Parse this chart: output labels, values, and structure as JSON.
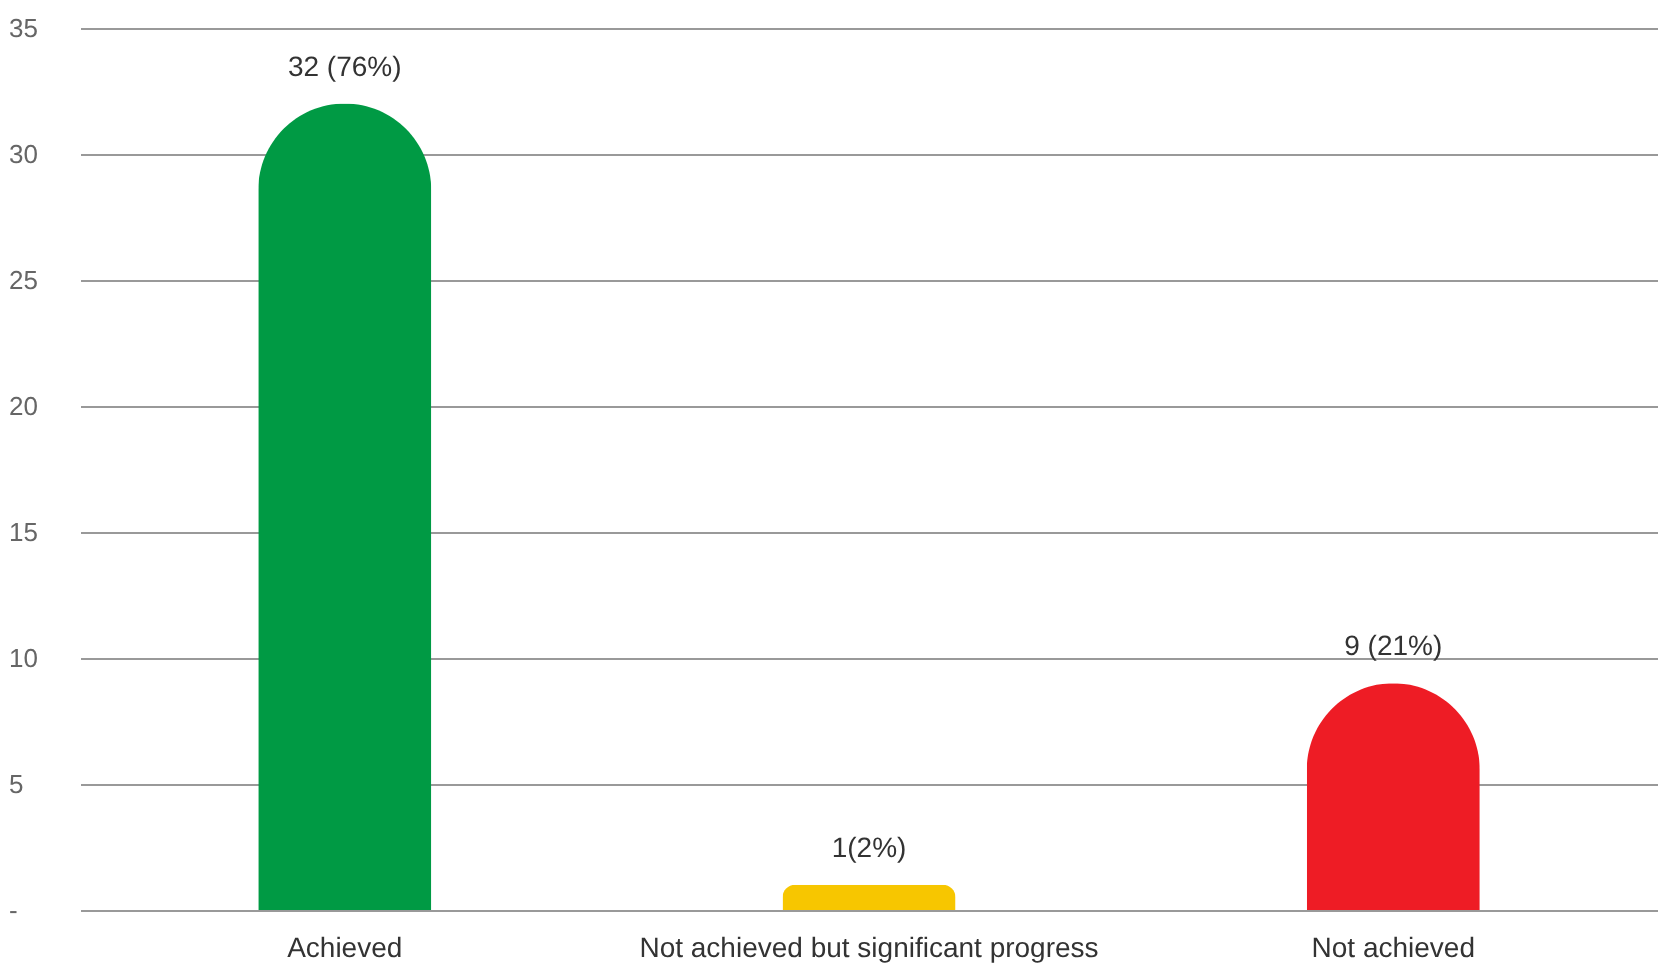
{
  "chart_data": {
    "type": "bar",
    "categories": [
      "Achieved",
      "Not achieved but significant progress",
      "Not achieved"
    ],
    "values": [
      32,
      1,
      9
    ],
    "colors": [
      "#009a44",
      "#f7c600",
      "#ee1c25"
    ],
    "value_labels": [
      "32 (76%)",
      "1(2%)",
      "9 (21%)"
    ],
    "ylim": [
      0,
      35
    ],
    "yticks": [
      {
        "value": 0,
        "label": "-"
      },
      5,
      10,
      15,
      20,
      25,
      30,
      35
    ],
    "grid": "y"
  }
}
